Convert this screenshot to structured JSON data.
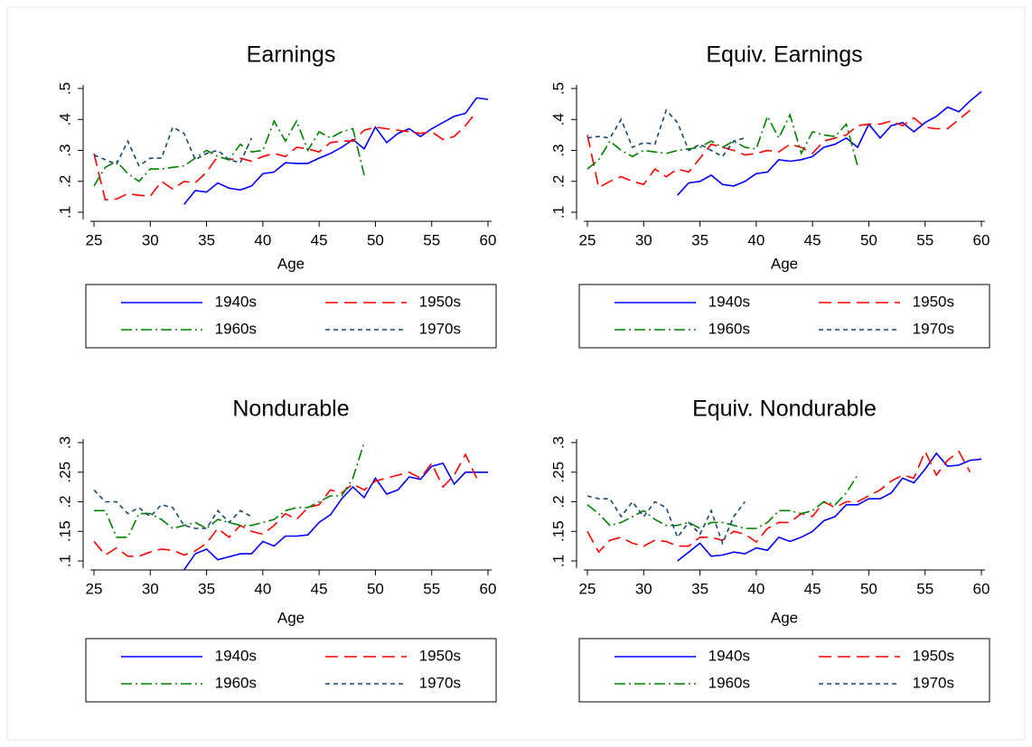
{
  "chart_data": [
    {
      "type": "line",
      "title": "Earnings",
      "x_label": "Age",
      "x": [
        25,
        26,
        27,
        28,
        29,
        30,
        31,
        32,
        33,
        34,
        35,
        36,
        37,
        38,
        39,
        40,
        41,
        42,
        43,
        44,
        45,
        46,
        47,
        48,
        49,
        50,
        51,
        52,
        53,
        54,
        55,
        56,
        57,
        58,
        59,
        60
      ],
      "xlim": [
        25,
        60
      ],
      "xticks": [
        25,
        30,
        35,
        40,
        45,
        50,
        55,
        60
      ],
      "ylim": [
        0.1,
        0.5
      ],
      "yticks": [
        {
          "value": 0.1,
          "label": ".1"
        },
        {
          "value": 0.2,
          "label": ".2"
        },
        {
          "value": 0.3,
          "label": ".3"
        },
        {
          "value": 0.4,
          "label": ".4"
        },
        {
          "value": 0.5,
          "label": ".5"
        }
      ],
      "legend": "bottom",
      "series": [
        {
          "name": "1940s",
          "color": "#0000ff",
          "dash": "solid",
          "values": [
            null,
            null,
            null,
            null,
            null,
            null,
            null,
            null,
            0.125,
            0.17,
            0.165,
            0.195,
            0.178,
            0.172,
            0.185,
            0.225,
            0.23,
            0.26,
            0.258,
            0.258,
            0.275,
            0.29,
            0.31,
            0.335,
            0.305,
            0.375,
            0.325,
            0.355,
            0.37,
            0.345,
            0.37,
            0.39,
            0.41,
            0.42,
            0.47,
            0.465
          ]
        },
        {
          "name": "1950s",
          "color": "#ff0000",
          "dash": "longdash",
          "values": [
            0.29,
            0.14,
            0.143,
            0.16,
            0.155,
            0.152,
            0.2,
            0.175,
            0.2,
            0.195,
            0.23,
            0.28,
            0.27,
            0.275,
            0.265,
            0.28,
            0.29,
            0.28,
            0.31,
            0.305,
            0.295,
            0.325,
            0.33,
            0.33,
            0.365,
            0.375,
            0.37,
            0.365,
            0.36,
            0.355,
            0.36,
            0.335,
            0.345,
            0.38,
            0.425,
            null
          ]
        },
        {
          "name": "1960s",
          "color": "#008000",
          "dash": "dashdot",
          "values": [
            0.185,
            0.245,
            0.265,
            0.225,
            0.2,
            0.24,
            0.24,
            0.245,
            0.25,
            0.275,
            0.3,
            0.28,
            0.27,
            0.32,
            0.295,
            0.3,
            0.395,
            0.33,
            0.395,
            0.3,
            0.36,
            0.34,
            0.36,
            0.37,
            0.22,
            null,
            null,
            null,
            null,
            null,
            null,
            null,
            null,
            null,
            null,
            null
          ]
        },
        {
          "name": "1970s",
          "color": "#1a476f",
          "dash": "shortdash",
          "values": [
            0.285,
            0.27,
            0.255,
            0.33,
            0.25,
            0.275,
            0.275,
            0.375,
            0.355,
            0.27,
            0.29,
            0.3,
            0.27,
            0.26,
            0.34,
            null,
            null,
            null,
            null,
            null,
            null,
            null,
            null,
            null,
            null,
            null,
            null,
            null,
            null,
            null,
            null,
            null,
            null,
            null,
            null,
            null
          ]
        }
      ]
    },
    {
      "type": "line",
      "title": "Equiv. Earnings",
      "x_label": "Age",
      "x": [
        25,
        26,
        27,
        28,
        29,
        30,
        31,
        32,
        33,
        34,
        35,
        36,
        37,
        38,
        39,
        40,
        41,
        42,
        43,
        44,
        45,
        46,
        47,
        48,
        49,
        50,
        51,
        52,
        53,
        54,
        55,
        56,
        57,
        58,
        59,
        60
      ],
      "xlim": [
        25,
        60
      ],
      "xticks": [
        25,
        30,
        35,
        40,
        45,
        50,
        55,
        60
      ],
      "ylim": [
        0.1,
        0.5
      ],
      "yticks": [
        {
          "value": 0.1,
          "label": ".1"
        },
        {
          "value": 0.2,
          "label": ".2"
        },
        {
          "value": 0.3,
          "label": ".3"
        },
        {
          "value": 0.4,
          "label": ".4"
        },
        {
          "value": 0.5,
          "label": ".5"
        }
      ],
      "legend": "bottom",
      "series": [
        {
          "name": "1940s",
          "color": "#0000ff",
          "dash": "solid",
          "values": [
            null,
            null,
            null,
            null,
            null,
            null,
            null,
            null,
            0.155,
            0.195,
            0.2,
            0.22,
            0.19,
            0.185,
            0.2,
            0.225,
            0.23,
            0.27,
            0.265,
            0.27,
            0.28,
            0.31,
            0.32,
            0.34,
            0.31,
            0.385,
            0.34,
            0.38,
            0.39,
            0.36,
            0.39,
            0.41,
            0.44,
            0.425,
            0.46,
            0.49
          ]
        },
        {
          "name": "1950s",
          "color": "#ff0000",
          "dash": "longdash",
          "values": [
            0.35,
            0.18,
            0.2,
            0.215,
            0.2,
            0.19,
            0.24,
            0.215,
            0.24,
            0.23,
            0.275,
            0.32,
            0.31,
            0.3,
            0.285,
            0.29,
            0.3,
            0.295,
            0.32,
            0.31,
            0.29,
            0.33,
            0.34,
            0.35,
            0.38,
            0.385,
            0.385,
            0.395,
            0.38,
            0.405,
            0.375,
            0.37,
            0.37,
            0.4,
            0.43,
            null
          ]
        },
        {
          "name": "1960s",
          "color": "#008000",
          "dash": "dashdot",
          "values": [
            0.24,
            0.27,
            0.33,
            0.3,
            0.28,
            0.3,
            0.295,
            0.29,
            0.3,
            0.305,
            0.31,
            0.33,
            0.31,
            0.33,
            0.31,
            0.305,
            0.41,
            0.34,
            0.415,
            0.29,
            0.36,
            0.35,
            0.345,
            0.385,
            0.25,
            null,
            null,
            null,
            null,
            null,
            null,
            null,
            null,
            null,
            null,
            null
          ]
        },
        {
          "name": "1970s",
          "color": "#1a476f",
          "dash": "shortdash",
          "values": [
            0.34,
            0.345,
            0.34,
            0.4,
            0.31,
            0.325,
            0.32,
            0.43,
            0.39,
            0.3,
            0.32,
            0.3,
            0.28,
            0.33,
            0.34,
            null,
            null,
            null,
            null,
            null,
            null,
            null,
            null,
            null,
            null,
            null,
            null,
            null,
            null,
            null,
            null,
            null,
            null,
            null,
            null,
            null
          ]
        }
      ]
    },
    {
      "type": "line",
      "title": "Nondurable",
      "x_label": "Age",
      "x": [
        25,
        26,
        27,
        28,
        29,
        30,
        31,
        32,
        33,
        34,
        35,
        36,
        37,
        38,
        39,
        40,
        41,
        42,
        43,
        44,
        45,
        46,
        47,
        48,
        49,
        50,
        51,
        52,
        53,
        54,
        55,
        56,
        57,
        58,
        59,
        60
      ],
      "xlim": [
        25,
        60
      ],
      "xticks": [
        25,
        30,
        35,
        40,
        45,
        50,
        55,
        60
      ],
      "ylim": [
        0.1,
        0.3
      ],
      "yticks": [
        {
          "value": 0.1,
          "label": ".1"
        },
        {
          "value": 0.15,
          "label": ".15"
        },
        {
          "value": 0.2,
          "label": ".2"
        },
        {
          "value": 0.25,
          "label": ".25"
        },
        {
          "value": 0.3,
          "label": ".3"
        }
      ],
      "legend": "bottom",
      "series": [
        {
          "name": "1940s",
          "color": "#0000ff",
          "dash": "solid",
          "values": [
            null,
            null,
            null,
            null,
            null,
            null,
            null,
            null,
            0.085,
            0.112,
            0.12,
            0.102,
            0.107,
            0.112,
            0.112,
            0.133,
            0.125,
            0.142,
            0.142,
            0.144,
            0.165,
            0.178,
            0.205,
            0.225,
            0.207,
            0.24,
            0.213,
            0.22,
            0.242,
            0.238,
            0.26,
            0.265,
            0.23,
            0.25,
            0.25,
            0.25
          ]
        },
        {
          "name": "1950s",
          "color": "#ff0000",
          "dash": "longdash",
          "values": [
            0.133,
            0.11,
            0.122,
            0.108,
            0.108,
            0.115,
            0.12,
            0.118,
            0.11,
            0.117,
            0.13,
            0.155,
            0.14,
            0.16,
            0.15,
            0.145,
            0.16,
            0.18,
            0.17,
            0.19,
            0.195,
            0.22,
            0.215,
            0.23,
            0.22,
            0.235,
            0.24,
            0.245,
            0.25,
            0.24,
            0.265,
            0.225,
            0.245,
            0.28,
            0.24,
            null
          ]
        },
        {
          "name": "1960s",
          "color": "#008000",
          "dash": "dashdot",
          "values": [
            0.185,
            0.185,
            0.14,
            0.14,
            0.18,
            0.18,
            0.17,
            0.155,
            0.16,
            0.165,
            0.155,
            0.17,
            0.165,
            0.16,
            0.16,
            0.165,
            0.17,
            0.185,
            0.19,
            0.19,
            0.2,
            0.21,
            0.21,
            0.24,
            0.3,
            null,
            null,
            null,
            null,
            null,
            null,
            null,
            null,
            null,
            null,
            null
          ]
        },
        {
          "name": "1970s",
          "color": "#1a476f",
          "dash": "shortdash",
          "values": [
            0.22,
            0.2,
            0.2,
            0.18,
            0.19,
            0.175,
            0.195,
            0.19,
            0.16,
            0.155,
            0.155,
            0.185,
            0.165,
            0.185,
            0.175,
            null,
            null,
            null,
            null,
            null,
            null,
            null,
            null,
            null,
            null,
            null,
            null,
            null,
            null,
            null,
            null,
            null,
            null,
            null,
            null,
            null
          ]
        }
      ]
    },
    {
      "type": "line",
      "title": "Equiv. Nondurable",
      "x_label": "Age",
      "x": [
        25,
        26,
        27,
        28,
        29,
        30,
        31,
        32,
        33,
        34,
        35,
        36,
        37,
        38,
        39,
        40,
        41,
        42,
        43,
        44,
        45,
        46,
        47,
        48,
        49,
        50,
        51,
        52,
        53,
        54,
        55,
        56,
        57,
        58,
        59,
        60
      ],
      "xlim": [
        25,
        60
      ],
      "xticks": [
        25,
        30,
        35,
        40,
        45,
        50,
        55,
        60
      ],
      "ylim": [
        0.1,
        0.3
      ],
      "yticks": [
        {
          "value": 0.1,
          "label": ".1"
        },
        {
          "value": 0.15,
          "label": ".15"
        },
        {
          "value": 0.2,
          "label": ".2"
        },
        {
          "value": 0.25,
          "label": ".25"
        },
        {
          "value": 0.3,
          "label": ".3"
        }
      ],
      "legend": "bottom",
      "series": [
        {
          "name": "1940s",
          "color": "#0000ff",
          "dash": "solid",
          "values": [
            null,
            null,
            null,
            null,
            null,
            null,
            null,
            null,
            0.1,
            0.115,
            0.13,
            0.108,
            0.11,
            0.115,
            0.112,
            0.122,
            0.118,
            0.14,
            0.133,
            0.14,
            0.15,
            0.168,
            0.175,
            0.195,
            0.195,
            0.205,
            0.205,
            0.215,
            0.24,
            0.232,
            0.255,
            0.282,
            0.26,
            0.262,
            0.27,
            0.272
          ]
        },
        {
          "name": "1950s",
          "color": "#ff0000",
          "dash": "longdash",
          "values": [
            0.15,
            0.115,
            0.135,
            0.14,
            0.13,
            0.125,
            0.135,
            0.133,
            0.125,
            0.125,
            0.14,
            0.14,
            0.135,
            0.15,
            0.145,
            0.132,
            0.155,
            0.165,
            0.165,
            0.18,
            0.175,
            0.2,
            0.19,
            0.2,
            0.2,
            0.21,
            0.22,
            0.235,
            0.245,
            0.24,
            0.285,
            0.245,
            0.27,
            0.285,
            0.25,
            null
          ]
        },
        {
          "name": "1960s",
          "color": "#008000",
          "dash": "dashdot",
          "values": [
            0.195,
            0.18,
            0.16,
            0.165,
            0.175,
            0.185,
            0.17,
            0.16,
            0.16,
            0.165,
            0.155,
            0.165,
            0.165,
            0.16,
            0.155,
            0.155,
            0.165,
            0.185,
            0.185,
            0.18,
            0.185,
            0.2,
            0.195,
            0.215,
            0.245,
            null,
            null,
            null,
            null,
            null,
            null,
            null,
            null,
            null,
            null,
            null
          ]
        },
        {
          "name": "1970s",
          "color": "#1a476f",
          "dash": "shortdash",
          "values": [
            0.21,
            0.205,
            0.205,
            0.175,
            0.2,
            0.175,
            0.2,
            0.19,
            0.14,
            0.165,
            0.145,
            0.185,
            0.13,
            0.175,
            0.2,
            null,
            null,
            null,
            null,
            null,
            null,
            null,
            null,
            null,
            null,
            null,
            null,
            null,
            null,
            null,
            null,
            null,
            null,
            null,
            null,
            null
          ]
        }
      ]
    }
  ]
}
